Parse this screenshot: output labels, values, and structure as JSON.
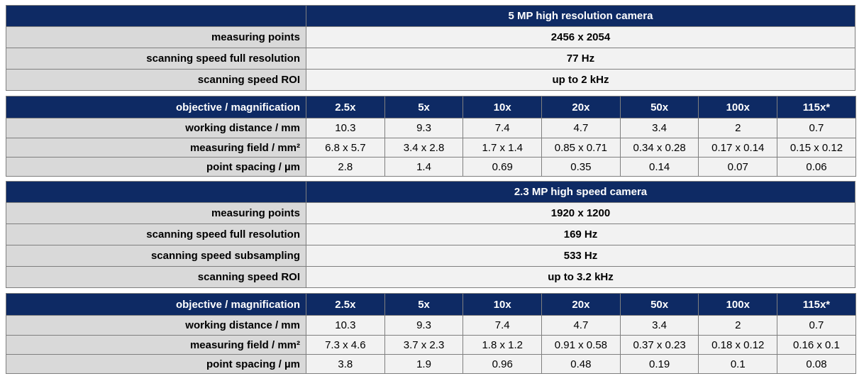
{
  "camera1": {
    "title": "5 MP high resolution camera",
    "specs": [
      {
        "label": "measuring points",
        "value": "2456 x 2054"
      },
      {
        "label": "scanning speed full resolution",
        "value": "77 Hz"
      },
      {
        "label": "scanning speed ROI",
        "value": "up to 2 kHz"
      }
    ],
    "objectives": {
      "header": "objective / magnification",
      "columns": [
        "2.5x",
        "5x",
        "10x",
        "20x",
        "50x",
        "100x",
        "115x*"
      ],
      "rows": [
        {
          "label": "working distance / mm",
          "cells": [
            "10.3",
            "9.3",
            "7.4",
            "4.7",
            "3.4",
            "2",
            "0.7"
          ]
        },
        {
          "label": "measuring field  / mm²",
          "cells": [
            "6.8 x 5.7",
            "3.4 x 2.8",
            "1.7 x 1.4",
            "0.85 x 0.71",
            "0.34 x 0.28",
            "0.17 x 0.14",
            "0.15 x 0.12"
          ]
        },
        {
          "label": "point spacing / µm",
          "cells": [
            "2.8",
            "1.4",
            "0.69",
            "0.35",
            "0.14",
            "0.07",
            "0.06"
          ]
        }
      ]
    }
  },
  "camera2": {
    "title": "2.3 MP high speed camera",
    "specs": [
      {
        "label": "measuring points",
        "value": "1920 x 1200"
      },
      {
        "label": "scanning speed full resolution",
        "value": "169 Hz"
      },
      {
        "label": "scanning speed subsampling",
        "value": "533 Hz"
      },
      {
        "label": "scanning speed ROI",
        "value": "up to 3.2 kHz"
      }
    ],
    "objectives": {
      "header": "objective / magnification",
      "columns": [
        "2.5x",
        "5x",
        "10x",
        "20x",
        "50x",
        "100x",
        "115x*"
      ],
      "rows": [
        {
          "label": "working distance / mm",
          "cells": [
            "10.3",
            "9.3",
            "7.4",
            "4.7",
            "3.4",
            "2",
            "0.7"
          ]
        },
        {
          "label": "measuring field  / mm²",
          "cells": [
            "7.3 x 4.6",
            "3.7 x 2.3",
            "1.8 x 1.2",
            "0.91 x 0.58",
            "0.37 x 0.23",
            "0.18 x 0.12",
            "0.16 x 0.1"
          ]
        },
        {
          "label": "point spacing / µm",
          "cells": [
            "3.8",
            "1.9",
            "0.96",
            "0.48",
            "0.19",
            "0.1",
            "0.08"
          ]
        }
      ]
    }
  }
}
